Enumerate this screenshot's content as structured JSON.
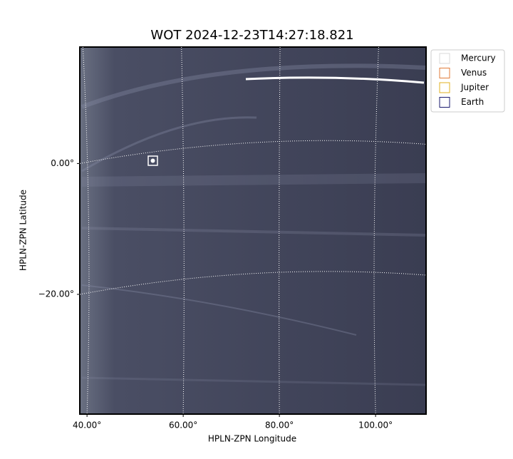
{
  "chart_data": {
    "type": "image",
    "title": "WOT 2024-12-23T14:27:18.821",
    "x_label": "HPLN-ZPN Longitude",
    "y_label": "HPLN-ZPN Latitude",
    "xlim": [
      38.5,
      110.5
    ],
    "ylim": [
      -38.3,
      17.8
    ],
    "xticks": [
      {
        "value": 40,
        "label": "40.00°"
      },
      {
        "value": 60,
        "label": "60.00°"
      },
      {
        "value": 80,
        "label": "80.00°"
      },
      {
        "value": 100,
        "label": "100.00°"
      }
    ],
    "yticks": [
      {
        "value": 0,
        "label": "0.00°"
      },
      {
        "value": -20,
        "label": "−20.00°"
      }
    ],
    "grid": true,
    "legend": "upper right",
    "series": [
      {
        "name": "Mercury",
        "color": "#d9d9d9"
      },
      {
        "name": "Venus",
        "color": "#e07b39"
      },
      {
        "name": "Jupiter",
        "color": "#e0b020"
      },
      {
        "name": "Earth",
        "color": "#1a1a6e"
      }
    ]
  }
}
